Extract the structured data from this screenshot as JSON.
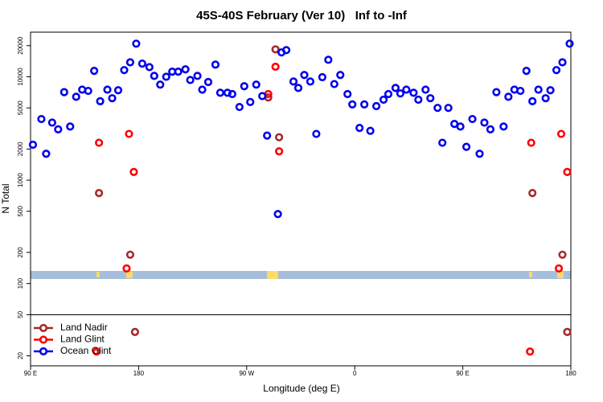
{
  "chart_data": {
    "type": "scatter",
    "title": "45S-40S February (Ver 10)   Inf to -Inf",
    "x_label": "Longitude (deg E)",
    "y_label": "N Total",
    "xlim": [
      90,
      540
    ],
    "xticks": [
      {
        "value": 90,
        "label": "90 E"
      },
      180,
      {
        "value": 270,
        "label": "90 W"
      },
      {
        "value": 360,
        "label": "0"
      },
      {
        "value": 450,
        "label": "90 E"
      },
      {
        "value": 540,
        "label": "180"
      }
    ],
    "ylim": [
      16,
      27000
    ],
    "y_log": true,
    "yticks": [
      20,
      50,
      100,
      200,
      500,
      1000,
      2000,
      5000,
      10000,
      20000
    ],
    "legend": "bottomleft",
    "series": [
      {
        "name": "Land Nadir",
        "color": "#a52a2a",
        "x": [
          147,
          173,
          177,
          294,
          297,
          288,
          508,
          533,
          537
        ],
        "values": [
          750,
          190,
          34,
          18400,
          2600,
          6300,
          750,
          190,
          34
        ]
      },
      {
        "name": "Land Glint",
        "color": "#ff0000",
        "x": [
          147,
          172,
          176,
          170,
          145,
          294,
          297,
          288,
          507,
          532,
          537,
          530,
          506
        ],
        "values": [
          2300,
          2800,
          1200,
          140,
          22,
          12500,
          1900,
          6800,
          2300,
          2800,
          1200,
          140,
          22
        ]
      },
      {
        "name": "Ocean Glint",
        "color": "#0000ee",
        "x": [
          92,
          99,
          103,
          108,
          113,
          118,
          123,
          128,
          133,
          138,
          143,
          148,
          154,
          158,
          163,
          168,
          173,
          178,
          183,
          189,
          193,
          198,
          203,
          208,
          213,
          219,
          223,
          229,
          233,
          238,
          244,
          248,
          254,
          258,
          264,
          268,
          273,
          278,
          283,
          287,
          296,
          299,
          303,
          309,
          313,
          318,
          323,
          328,
          333,
          338,
          343,
          348,
          354,
          358,
          364,
          368,
          373,
          378,
          384,
          388,
          394,
          398,
          403,
          409,
          413,
          419,
          423,
          429,
          433,
          438,
          443,
          448,
          453,
          458,
          464,
          468,
          473,
          478,
          484,
          488,
          493,
          498,
          503,
          508,
          513,
          519,
          523,
          528,
          533,
          539
        ],
        "values": [
          2200,
          3900,
          1800,
          3600,
          3100,
          7100,
          3300,
          6400,
          7500,
          7300,
          11400,
          5800,
          7500,
          6200,
          7400,
          11600,
          13800,
          20900,
          13400,
          12400,
          10200,
          8400,
          10000,
          11200,
          11200,
          11800,
          9300,
          10200,
          7500,
          8900,
          13100,
          7000,
          7000,
          6800,
          5100,
          8100,
          5700,
          8400,
          6500,
          2700,
          470,
          17200,
          18100,
          9000,
          7800,
          10400,
          9000,
          2800,
          9900,
          14600,
          8500,
          10400,
          6800,
          5400,
          3200,
          5400,
          3000,
          5200,
          6000,
          6800,
          7800,
          6900,
          7500,
          7000,
          6000,
          7500,
          6200,
          5000,
          2300,
          5000,
          3500,
          3300,
          2100,
          3900,
          1800,
          3600,
          3100,
          7100,
          3300,
          6400,
          7500,
          7300,
          11400,
          5800,
          7500,
          6200,
          7400,
          11600,
          13800,
          20900
        ]
      }
    ]
  }
}
